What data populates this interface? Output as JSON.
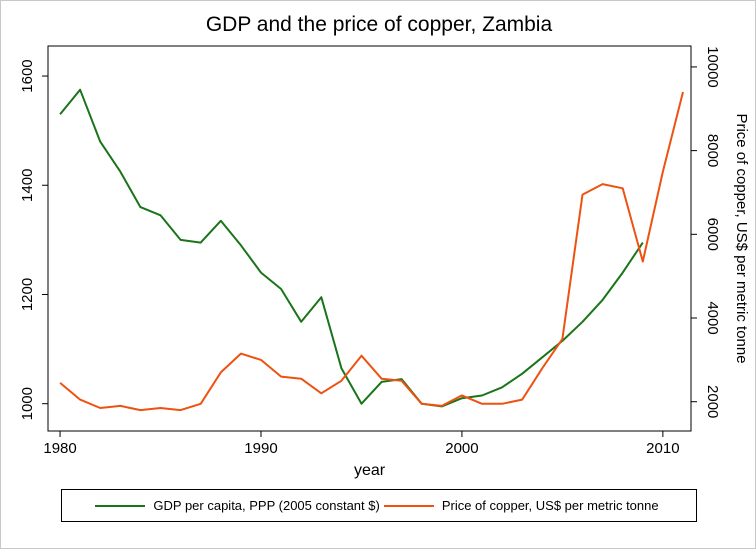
{
  "chart_data": {
    "type": "line",
    "title": "GDP and the price of copper, Zambia",
    "xlabel": "year",
    "ylabel_left": "",
    "ylabel_right": "Price of copper, US$ per metric tonne",
    "legend_position": "bottom",
    "grid": false,
    "x_range": [
      1979.4,
      2011.4
    ],
    "x_ticks": [
      1980,
      1990,
      2000,
      2010
    ],
    "y_left_range": [
      950,
      1655
    ],
    "y_left_ticks": [
      1000,
      1200,
      1400,
      1600
    ],
    "y_right_range": [
      1300,
      10500
    ],
    "y_right_ticks": [
      2000,
      4000,
      6000,
      8000,
      10000
    ],
    "series": [
      {
        "name": "GDP per capita, PPP (2005 constant $)",
        "axis": "left",
        "color": "#1a751a",
        "x": [
          1980,
          1981,
          1982,
          1983,
          1984,
          1985,
          1986,
          1987,
          1988,
          1989,
          1990,
          1991,
          1992,
          1993,
          1994,
          1995,
          1996,
          1997,
          1998,
          1999,
          2000,
          2001,
          2002,
          2003,
          2004,
          2005,
          2006,
          2007,
          2008,
          2009
        ],
        "values": [
          1530,
          1575,
          1480,
          1425,
          1360,
          1345,
          1300,
          1295,
          1335,
          1290,
          1240,
          1210,
          1150,
          1195,
          1065,
          1000,
          1040,
          1045,
          1000,
          995,
          1010,
          1015,
          1030,
          1055,
          1085,
          1115,
          1150,
          1190,
          1240,
          1295
        ]
      },
      {
        "name": "Price of copper, US$ per metric tonne",
        "axis": "right",
        "color": "#ee5211",
        "x": [
          1980,
          1981,
          1982,
          1983,
          1984,
          1985,
          1986,
          1987,
          1988,
          1989,
          1990,
          1991,
          1992,
          1993,
          1994,
          1995,
          1996,
          1997,
          1998,
          1999,
          2000,
          2001,
          2002,
          2003,
          2004,
          2005,
          2006,
          2007,
          2008,
          2009,
          2010,
          2011
        ],
        "values": [
          2450,
          2050,
          1850,
          1900,
          1800,
          1850,
          1800,
          1950,
          2700,
          3150,
          3000,
          2600,
          2550,
          2200,
          2500,
          3100,
          2550,
          2500,
          1950,
          1900,
          2150,
          1950,
          1950,
          2050,
          2800,
          3500,
          6950,
          7200,
          7100,
          5350,
          7500,
          9400
        ]
      }
    ]
  }
}
